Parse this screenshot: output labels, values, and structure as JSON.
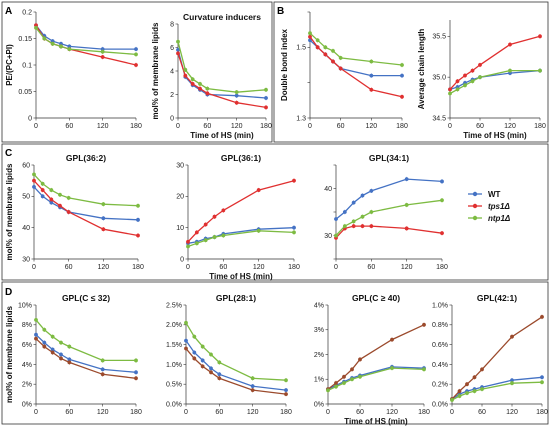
{
  "colors": {
    "WT": "#4472c4",
    "tps1": "#e03030",
    "ntp1": "#7dbb42",
    "tps1_dark": "#9b4a2c"
  },
  "chart_data": [
    {
      "id": "A1",
      "panel": "A",
      "type": "line",
      "title": "",
      "xlabel": "",
      "ylabel": "PE/(PC+PI)",
      "x": [
        0,
        15,
        30,
        45,
        60,
        120,
        180
      ],
      "xticks": [
        0,
        60,
        120,
        180
      ],
      "ylim": [
        0,
        0.2
      ],
      "yticks": [
        0,
        0.05,
        0.1,
        0.15,
        0.2
      ],
      "yticklabels": [
        "0",
        "0.05",
        "0.1",
        "0.15",
        "0.2"
      ],
      "series": [
        {
          "key": "WT",
          "values": [
            0.175,
            0.155,
            0.145,
            0.14,
            0.135,
            0.13,
            0.13
          ]
        },
        {
          "key": "tps1",
          "values": [
            0.175,
            0.15,
            0.14,
            0.135,
            0.13,
            0.115,
            0.1
          ]
        },
        {
          "key": "ntp1",
          "values": [
            0.17,
            0.15,
            0.14,
            0.135,
            0.13,
            0.125,
            0.12
          ]
        }
      ]
    },
    {
      "id": "A2",
      "panel": "A",
      "type": "line",
      "title": "Curvature inducers",
      "xlabel": "Time of HS (min)",
      "ylabel": "mol% of membrane lipids",
      "x": [
        0,
        15,
        30,
        45,
        60,
        120,
        180
      ],
      "xticks": [
        0,
        60,
        120,
        180
      ],
      "ylim": [
        0,
        8
      ],
      "yticks": [
        0,
        2,
        4,
        6,
        8
      ],
      "yticklabels": [
        "0",
        "2",
        "4",
        "6",
        "8"
      ],
      "series": [
        {
          "key": "WT",
          "values": [
            5.8,
            3.5,
            2.8,
            2.4,
            2.0,
            1.9,
            1.7
          ]
        },
        {
          "key": "tps1",
          "values": [
            5.5,
            3.6,
            2.9,
            2.5,
            2.1,
            1.3,
            0.9
          ]
        },
        {
          "key": "ntp1",
          "values": [
            6.5,
            4.1,
            3.3,
            2.9,
            2.5,
            2.2,
            2.4
          ]
        }
      ]
    },
    {
      "id": "B1",
      "panel": "B",
      "type": "line",
      "title": "",
      "xlabel": "",
      "ylabel": "Double bond index",
      "x": [
        0,
        15,
        30,
        45,
        60,
        120,
        180
      ],
      "xticks": [
        0,
        60,
        120,
        180
      ],
      "ylim": [
        1.3,
        1.6
      ],
      "yticks": [
        1.3,
        1.4,
        1.5,
        1.6
      ],
      "yticklabels": [
        "1.3",
        "",
        "1.5",
        ""
      ],
      "series": [
        {
          "key": "WT",
          "values": [
            1.52,
            1.5,
            1.48,
            1.46,
            1.44,
            1.42,
            1.42
          ]
        },
        {
          "key": "tps1",
          "values": [
            1.53,
            1.5,
            1.48,
            1.46,
            1.44,
            1.38,
            1.36
          ]
        },
        {
          "key": "ntp1",
          "values": [
            1.54,
            1.52,
            1.5,
            1.49,
            1.47,
            1.46,
            1.45
          ]
        }
      ]
    },
    {
      "id": "B2",
      "panel": "B",
      "type": "line",
      "title": "",
      "xlabel": "Time of HS (min)",
      "ylabel": "Average chain length",
      "x": [
        0,
        15,
        30,
        45,
        60,
        120,
        180
      ],
      "xticks": [
        0,
        60,
        120,
        180
      ],
      "ylim": [
        34.5,
        35.7
      ],
      "yticks": [
        34.5,
        35.0,
        35.5
      ],
      "yticklabels": [
        "34.5",
        "35.0",
        "35.5"
      ],
      "series": [
        {
          "key": "WT",
          "values": [
            34.85,
            34.88,
            34.93,
            34.97,
            35.0,
            35.05,
            35.08
          ]
        },
        {
          "key": "tps1",
          "values": [
            34.85,
            34.95,
            35.02,
            35.08,
            35.15,
            35.4,
            35.5
          ]
        },
        {
          "key": "ntp1",
          "values": [
            34.8,
            34.85,
            34.9,
            34.95,
            35.0,
            35.08,
            35.08
          ]
        }
      ]
    },
    {
      "id": "C1",
      "panel": "C",
      "type": "line",
      "title": "GPL(36:2)",
      "xlabel": "",
      "ylabel": "mol% of membrane lipids",
      "x": [
        0,
        15,
        30,
        45,
        60,
        120,
        180
      ],
      "xticks": [
        0,
        60,
        120,
        180
      ],
      "ylim": [
        30,
        60
      ],
      "yticks": [
        30,
        40,
        50,
        60
      ],
      "yticklabels": [
        "30",
        "40",
        "50",
        "60"
      ],
      "series": [
        {
          "key": "WT",
          "values": [
            53,
            50,
            48,
            46.5,
            45,
            43,
            42.5
          ]
        },
        {
          "key": "tps1",
          "values": [
            55,
            52,
            49,
            47,
            45,
            39.5,
            37.5
          ]
        },
        {
          "key": "ntp1",
          "values": [
            57,
            54,
            52,
            50.5,
            49.5,
            47.5,
            47
          ]
        }
      ]
    },
    {
      "id": "C2",
      "panel": "C",
      "type": "line",
      "title": "GPL(36:1)",
      "xlabel": "Time of HS (min)",
      "ylabel": "",
      "x": [
        0,
        15,
        30,
        45,
        60,
        120,
        180
      ],
      "xticks": [
        0,
        60,
        120,
        180
      ],
      "ylim": [
        0,
        30
      ],
      "yticks": [
        0,
        10,
        20,
        30
      ],
      "yticklabels": [
        "0",
        "10",
        "20",
        "30"
      ],
      "series": [
        {
          "key": "WT",
          "values": [
            5,
            5.5,
            6.5,
            7,
            8,
            9.5,
            10
          ]
        },
        {
          "key": "tps1",
          "values": [
            5.5,
            8.5,
            11,
            13.5,
            15.5,
            22,
            25
          ]
        },
        {
          "key": "ntp1",
          "values": [
            4,
            5,
            6,
            7,
            7.5,
            9,
            8.5
          ]
        }
      ]
    },
    {
      "id": "C3",
      "panel": "C",
      "type": "line",
      "title": "GPL(34:1)",
      "xlabel": "",
      "ylabel": "",
      "x": [
        0,
        15,
        30,
        45,
        60,
        120,
        180
      ],
      "xticks": [
        0,
        60,
        120,
        180
      ],
      "ylim": [
        25,
        45
      ],
      "yticks": [
        25,
        30,
        35,
        40,
        45
      ],
      "yticklabels": [
        "",
        "30",
        "",
        "40",
        ""
      ],
      "series": [
        {
          "key": "WT",
          "values": [
            33.5,
            35,
            37,
            38.5,
            39.5,
            42,
            41.5
          ]
        },
        {
          "key": "tps1",
          "values": [
            29.5,
            31.5,
            32,
            32,
            32,
            31.5,
            30.5
          ]
        },
        {
          "key": "ntp1",
          "values": [
            30,
            32,
            33,
            34,
            35,
            36.5,
            37.5
          ]
        }
      ]
    },
    {
      "id": "D1",
      "panel": "D",
      "type": "line",
      "title": "GPL(C ≤ 32)",
      "xlabel": "",
      "ylabel": "mol% of membrane lipids",
      "x": [
        0,
        15,
        30,
        45,
        60,
        120,
        180
      ],
      "xticks": [
        0,
        60,
        120,
        180
      ],
      "ylim": [
        0,
        10
      ],
      "yticks": [
        0,
        2,
        4,
        6,
        8,
        10
      ],
      "yticklabels": [
        "0%",
        "2%",
        "4%",
        "6%",
        "8%",
        "10%"
      ],
      "series": [
        {
          "key": "WT",
          "values": [
            7.0,
            6.2,
            5.5,
            5.0,
            4.5,
            3.5,
            3.2
          ]
        },
        {
          "key": "tps1",
          "values": [
            6.6,
            5.8,
            5.2,
            4.6,
            4.2,
            3.0,
            2.6
          ]
        },
        {
          "key": "ntp1",
          "values": [
            8.5,
            7.5,
            6.8,
            6.2,
            5.8,
            4.4,
            4.4
          ]
        }
      ]
    },
    {
      "id": "D2",
      "panel": "D",
      "type": "line",
      "title": "GPL(28:1)",
      "xlabel": "",
      "ylabel": "",
      "x": [
        0,
        15,
        30,
        45,
        60,
        120,
        180
      ],
      "xticks": [
        0,
        60,
        120,
        180
      ],
      "ylim": [
        0,
        2.5
      ],
      "yticks": [
        0,
        0.5,
        1.0,
        1.5,
        2.0,
        2.5
      ],
      "yticklabels": [
        "0.0%",
        "0.5%",
        "1.0%",
        "1.5%",
        "2.0%",
        "2.5%"
      ],
      "series": [
        {
          "key": "WT",
          "values": [
            1.6,
            1.3,
            1.1,
            0.9,
            0.75,
            0.45,
            0.35
          ]
        },
        {
          "key": "tps1",
          "values": [
            1.4,
            1.15,
            0.95,
            0.8,
            0.65,
            0.35,
            0.25
          ]
        },
        {
          "key": "ntp1",
          "values": [
            2.05,
            1.7,
            1.45,
            1.25,
            1.05,
            0.65,
            0.6
          ]
        }
      ]
    },
    {
      "id": "D3",
      "panel": "D",
      "type": "line",
      "title": "GPL(C ≥ 40)",
      "xlabel": "Time of HS (min)",
      "ylabel": "",
      "x": [
        0,
        15,
        30,
        45,
        60,
        120,
        180
      ],
      "xticks": [
        0,
        60,
        120,
        180
      ],
      "ylim": [
        0,
        4
      ],
      "yticks": [
        0,
        1,
        2,
        3,
        4
      ],
      "yticklabels": [
        "0%",
        "1%",
        "2%",
        "3%",
        "4%"
      ],
      "series": [
        {
          "key": "WT",
          "values": [
            0.6,
            0.75,
            0.9,
            1.05,
            1.15,
            1.5,
            1.45
          ]
        },
        {
          "key": "tps1",
          "values": [
            0.6,
            0.85,
            1.1,
            1.4,
            1.8,
            2.6,
            3.2
          ]
        },
        {
          "key": "ntp1",
          "values": [
            0.55,
            0.7,
            0.85,
            1.0,
            1.1,
            1.45,
            1.4
          ]
        }
      ]
    },
    {
      "id": "D4",
      "panel": "D",
      "type": "line",
      "title": "GPL(42:1)",
      "xlabel": "",
      "ylabel": "",
      "x": [
        0,
        15,
        30,
        45,
        60,
        120,
        180
      ],
      "xticks": [
        0,
        60,
        120,
        180
      ],
      "ylim": [
        0,
        1.0
      ],
      "yticks": [
        0,
        0.2,
        0.4,
        0.6,
        0.8,
        1.0
      ],
      "yticklabels": [
        "0.0%",
        "0.2%",
        "0.4%",
        "0.6%",
        "0.8%",
        "1.0%"
      ],
      "series": [
        {
          "key": "WT",
          "values": [
            0.05,
            0.1,
            0.13,
            0.15,
            0.17,
            0.24,
            0.27
          ]
        },
        {
          "key": "tps1",
          "values": [
            0.05,
            0.13,
            0.2,
            0.27,
            0.35,
            0.68,
            0.88
          ]
        },
        {
          "key": "ntp1",
          "values": [
            0.04,
            0.08,
            0.11,
            0.13,
            0.15,
            0.21,
            0.22
          ]
        }
      ]
    }
  ],
  "legend": [
    {
      "key": "WT",
      "label": "WT",
      "italic": false
    },
    {
      "key": "tps1",
      "label": "tps1Δ",
      "italic": true
    },
    {
      "key": "ntp1",
      "label": "ntp1Δ",
      "italic": true
    }
  ],
  "panel_letters": {
    "A": "A",
    "B": "B",
    "C": "C",
    "D": "D"
  }
}
